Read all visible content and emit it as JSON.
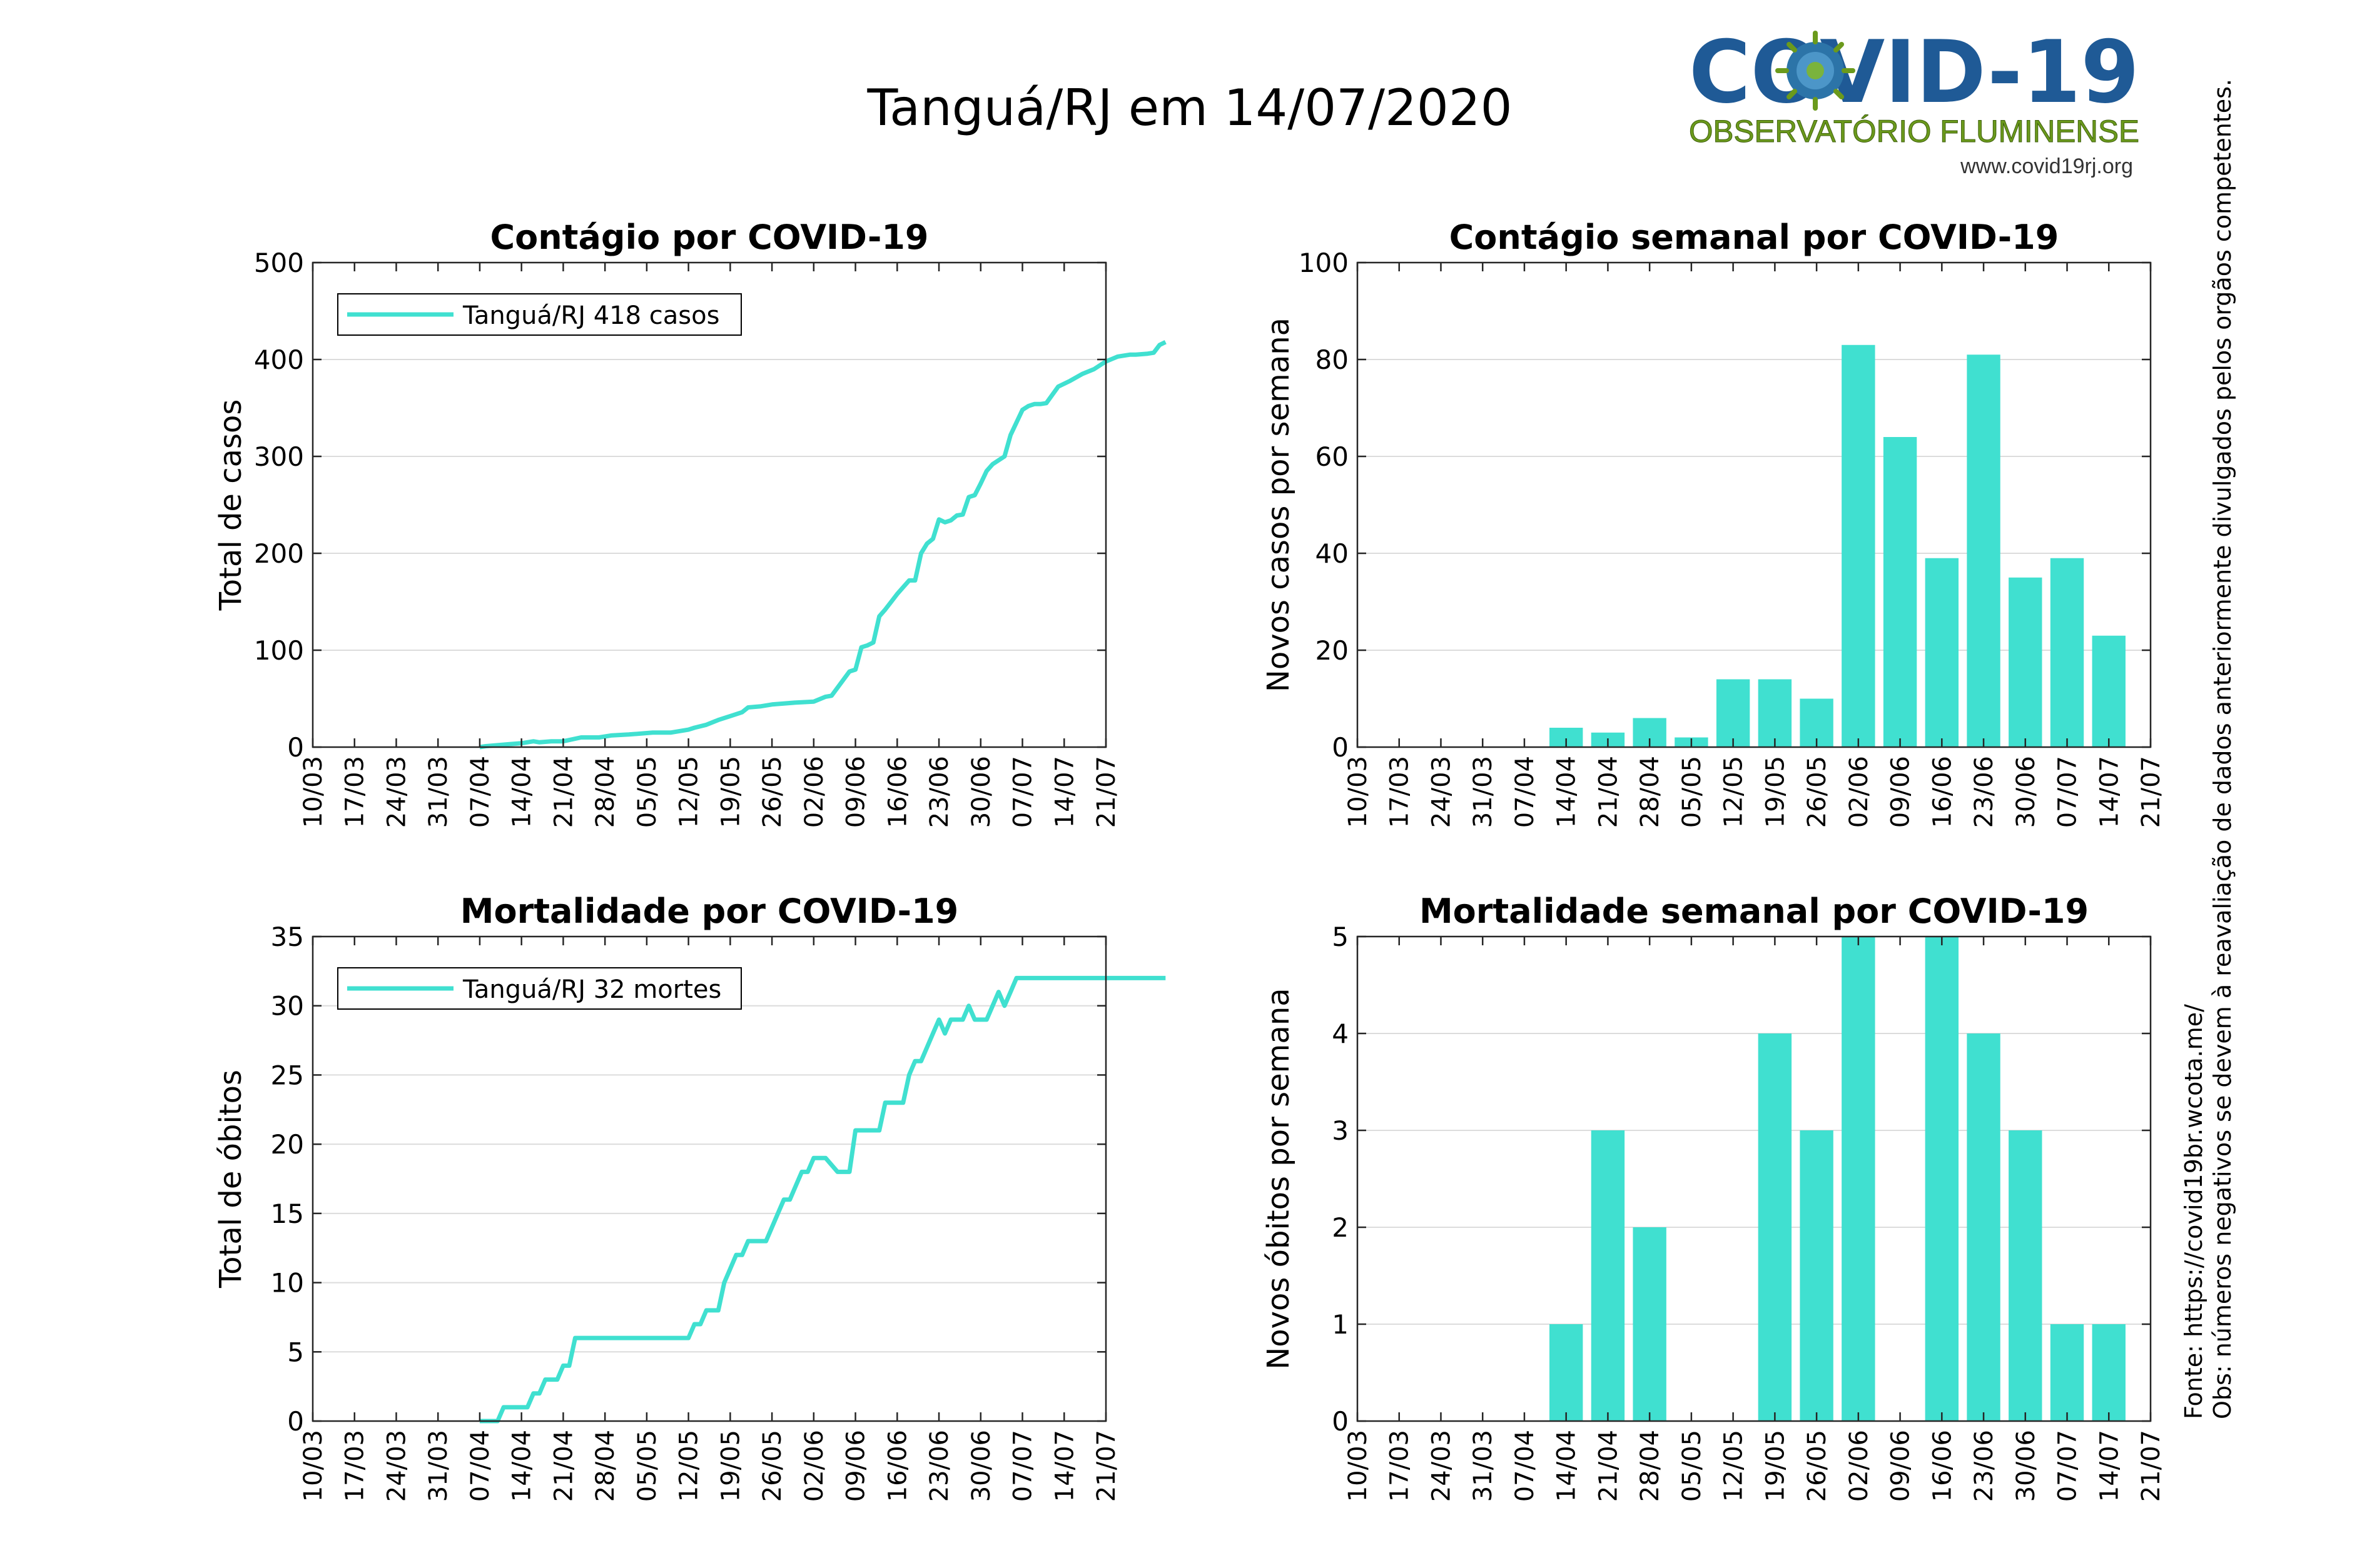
{
  "figure": {
    "title": "Tanguá/RJ em 14/07/2020",
    "logo": {
      "main_text": "COVID-19",
      "subtitle": "OBSERVATÓRIO FLUMINENSE",
      "url": "www.covid19rj.org"
    },
    "side_notes": [
      "Fonte: https://covid19br.wcota.me/",
      "Obs: números negativos se devem à reavaliação de dados anteriormente divulgados pelos orgãos competentes."
    ],
    "colors": {
      "series": "#40E0D0",
      "grid": "#dcdcdc",
      "axis": "#262626",
      "logo_blue": "#1f5a96",
      "logo_green": "#6b9a1c"
    }
  },
  "chart_data": [
    {
      "id": "cumulative-cases",
      "type": "line",
      "title": "Contágio por COVID-19",
      "xlabel": "",
      "ylabel": "Total de casos",
      "ylim": [
        0,
        500
      ],
      "yticks": [
        0,
        100,
        200,
        300,
        400,
        500
      ],
      "x_tick_labels": [
        "10/03",
        "17/03",
        "24/03",
        "31/03",
        "07/04",
        "14/04",
        "21/04",
        "28/04",
        "05/05",
        "12/05",
        "19/05",
        "26/05",
        "02/06",
        "09/06",
        "16/06",
        "23/06",
        "30/06",
        "07/07",
        "14/07",
        "21/07"
      ],
      "x_is_days_from_first_tick": true,
      "grid": "horizontal",
      "legend": {
        "position": "top-left",
        "entries": [
          {
            "label": "Tanguá/RJ  418 casos"
          }
        ]
      },
      "series": [
        {
          "name": "Tanguá/RJ  418 casos",
          "x": [
            28,
            29,
            31,
            33,
            35,
            37,
            38,
            40,
            42,
            45,
            48,
            50,
            53,
            57,
            58,
            60,
            63,
            64,
            66,
            68,
            70,
            72,
            73,
            75,
            77,
            79,
            81,
            84,
            86,
            87,
            90,
            91,
            92,
            93,
            94,
            95,
            96,
            97,
            98,
            99,
            100,
            101,
            102,
            103,
            104,
            105,
            106,
            107,
            108,
            109,
            110,
            111,
            112,
            113,
            114,
            115,
            116,
            117,
            118,
            119,
            120,
            121,
            122,
            123,
            125,
            127,
            129,
            131,
            133,
            135,
            137,
            138,
            140,
            141,
            142,
            143
          ],
          "y": [
            0,
            1,
            2,
            3,
            4,
            6,
            5,
            6,
            6,
            10,
            10,
            12,
            13,
            15,
            15,
            15,
            18,
            20,
            23,
            28,
            32,
            36,
            41,
            42,
            44,
            45,
            46,
            47,
            52,
            53,
            78,
            80,
            103,
            105,
            108,
            135,
            142,
            150,
            158,
            165,
            172,
            172,
            200,
            210,
            215,
            235,
            232,
            234,
            239,
            240,
            258,
            260,
            272,
            285,
            292,
            296,
            300,
            322,
            335,
            348,
            352,
            354,
            354,
            355,
            372,
            378,
            385,
            390,
            398,
            403,
            405,
            405,
            406,
            407,
            415,
            418
          ]
        }
      ]
    },
    {
      "id": "weekly-cases",
      "type": "bar",
      "title": "Contágio semanal por COVID-19",
      "xlabel": "",
      "ylabel": "Novos casos por semana",
      "ylim": [
        0,
        100
      ],
      "yticks": [
        0,
        20,
        40,
        60,
        80,
        100
      ],
      "categories": [
        "10/03",
        "17/03",
        "24/03",
        "31/03",
        "07/04",
        "14/04",
        "21/04",
        "28/04",
        "05/05",
        "12/05",
        "19/05",
        "26/05",
        "02/06",
        "09/06",
        "16/06",
        "23/06",
        "30/06",
        "07/07",
        "14/07",
        "21/07"
      ],
      "values": [
        0,
        0,
        0,
        0,
        0,
        4,
        3,
        6,
        2,
        14,
        14,
        10,
        83,
        64,
        39,
        81,
        35,
        39,
        23,
        0
      ],
      "grid": "horizontal"
    },
    {
      "id": "cumulative-deaths",
      "type": "line",
      "title": "Mortalidade por COVID-19",
      "xlabel": "",
      "ylabel": "Total de óbitos",
      "ylim": [
        0,
        35
      ],
      "yticks": [
        0,
        5,
        10,
        15,
        20,
        25,
        30,
        35
      ],
      "x_tick_labels": [
        "10/03",
        "17/03",
        "24/03",
        "31/03",
        "07/04",
        "14/04",
        "21/04",
        "28/04",
        "05/05",
        "12/05",
        "19/05",
        "26/05",
        "02/06",
        "09/06",
        "16/06",
        "23/06",
        "30/06",
        "07/07",
        "14/07",
        "21/07"
      ],
      "x_is_days_from_first_tick": true,
      "grid": "horizontal",
      "legend": {
        "position": "top-left",
        "entries": [
          {
            "label": "Tanguá/RJ  32 mortes"
          }
        ]
      },
      "series": [
        {
          "name": "Tanguá/RJ  32 mortes",
          "x": [
            28,
            31,
            32,
            33,
            36,
            37,
            38,
            39,
            40,
            41,
            42,
            43,
            44,
            45,
            63,
            64,
            65,
            66,
            67,
            68,
            69,
            70,
            71,
            72,
            73,
            74,
            75,
            76,
            77,
            78,
            79,
            80,
            81,
            82,
            83,
            84,
            85,
            86,
            88,
            89,
            90,
            91,
            92,
            93,
            94,
            95,
            96,
            97,
            98,
            99,
            100,
            101,
            102,
            103,
            104,
            105,
            106,
            107,
            108,
            109,
            110,
            111,
            112,
            113,
            114,
            115,
            116,
            117,
            118,
            119,
            120,
            121,
            122,
            123,
            125,
            127,
            128,
            130,
            131,
            132,
            133,
            138,
            143
          ],
          "y": [
            0,
            0,
            1,
            1,
            1,
            2,
            2,
            3,
            3,
            3,
            4,
            4,
            6,
            6,
            6,
            7,
            7,
            8,
            8,
            8,
            10,
            11,
            12,
            12,
            13,
            13,
            13,
            13,
            14,
            15,
            16,
            16,
            17,
            18,
            18,
            19,
            19,
            19,
            18,
            18,
            18,
            21,
            21,
            21,
            21,
            21,
            23,
            23,
            23,
            23,
            25,
            26,
            26,
            27,
            28,
            29,
            28,
            29,
            29,
            29,
            30,
            29,
            29,
            29,
            30,
            31,
            30,
            31,
            32,
            32,
            32,
            32,
            32,
            32,
            32,
            32,
            32,
            32,
            32,
            32,
            32,
            32,
            32
          ]
        }
      ]
    },
    {
      "id": "weekly-deaths",
      "type": "bar",
      "title": "Mortalidade semanal por COVID-19",
      "xlabel": "",
      "ylabel": "Novos óbitos por semana",
      "ylim": [
        0,
        5
      ],
      "yticks": [
        0,
        1,
        2,
        3,
        4,
        5
      ],
      "categories": [
        "10/03",
        "17/03",
        "24/03",
        "31/03",
        "07/04",
        "14/04",
        "21/04",
        "28/04",
        "05/05",
        "12/05",
        "19/05",
        "26/05",
        "02/06",
        "09/06",
        "16/06",
        "23/06",
        "30/06",
        "07/07",
        "14/07",
        "21/07"
      ],
      "values": [
        0,
        0,
        0,
        0,
        0,
        1,
        3,
        2,
        0,
        0,
        4,
        3,
        5,
        0,
        5,
        4,
        3,
        1,
        1,
        0
      ],
      "grid": "horizontal"
    }
  ]
}
